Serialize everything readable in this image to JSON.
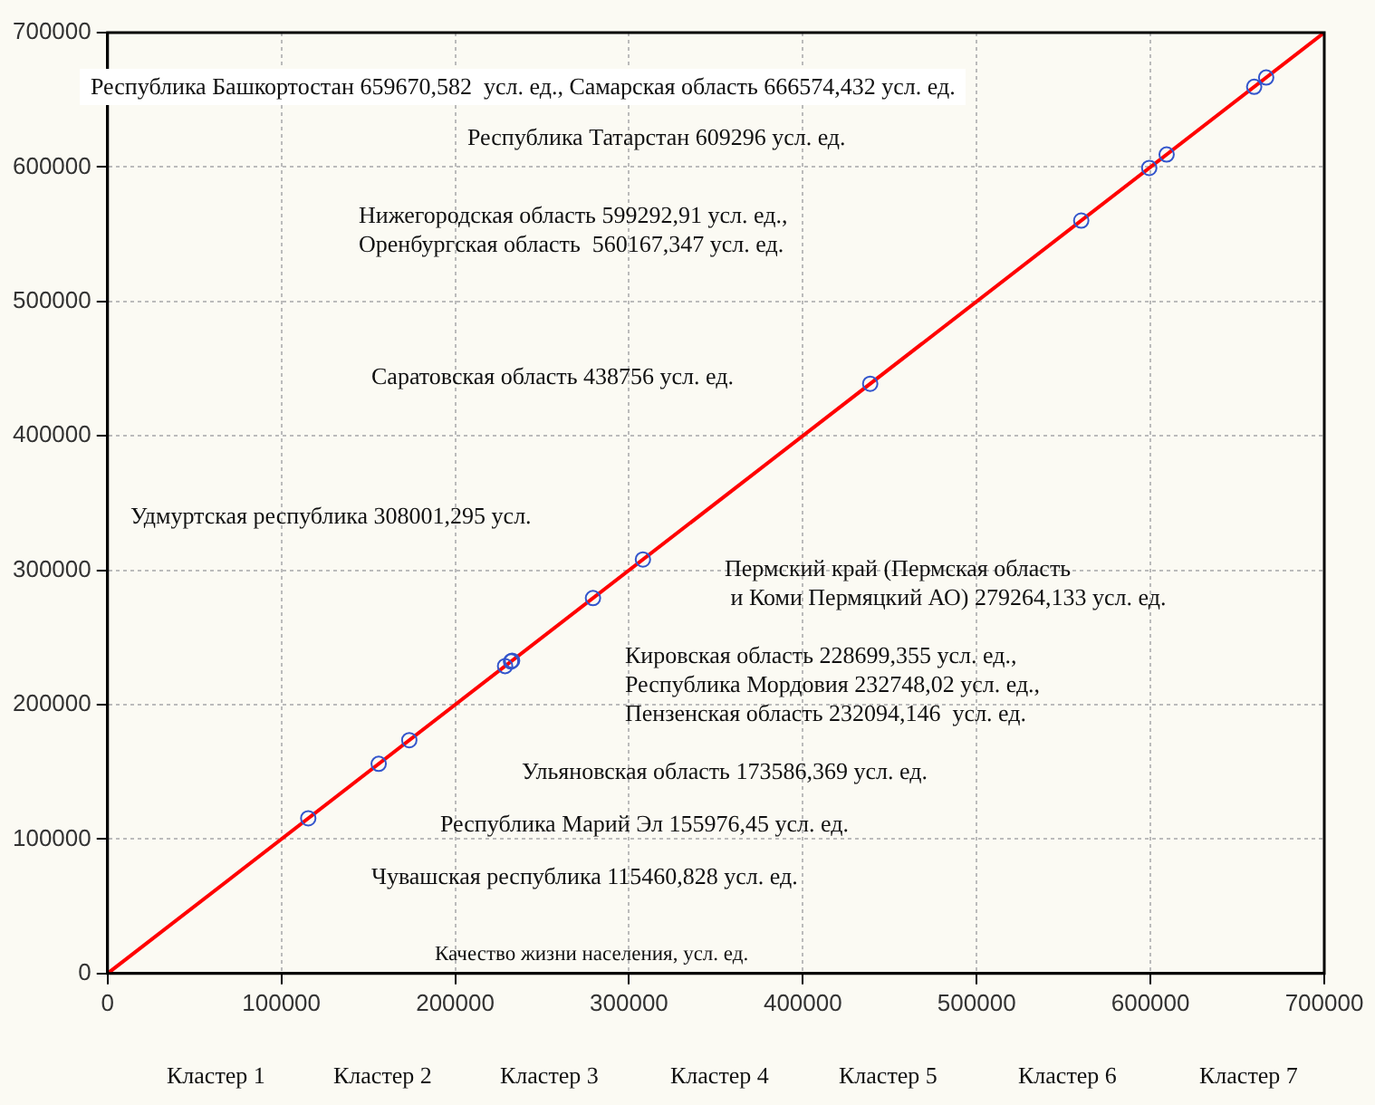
{
  "chart_data": {
    "type": "scatter",
    "xlim": [
      0,
      700000
    ],
    "ylim": [
      0,
      700000
    ],
    "xticks": [
      0,
      100000,
      200000,
      300000,
      400000,
      500000,
      600000,
      700000
    ],
    "yticks": [
      0,
      100000,
      200000,
      300000,
      400000,
      500000,
      600000,
      700000
    ],
    "grid": true,
    "marker": "circle",
    "series": [
      {
        "type": "line",
        "color": "#ff0000",
        "marker": "none",
        "x": [
          0,
          700000
        ],
        "values": [
          0,
          700000
        ]
      },
      {
        "type": "scatter",
        "color": "#3355cc",
        "x": [
          115460.828,
          155976.45,
          173586.369,
          228699.355,
          232094.146,
          232748.02,
          279264.133,
          308001.295,
          438756,
          560167.347,
          599292.91,
          609296,
          659670.582,
          666574.432
        ],
        "values": [
          115460.828,
          155976.45,
          173586.369,
          228699.355,
          232094.146,
          232748.02,
          279264.133,
          308001.295,
          438756,
          560167.347,
          599292.91,
          609296,
          659670.582,
          666574.432
        ]
      }
    ],
    "annotations": [
      "Республика Башкортостан 659670,582  усл. ед., Самарская область 666574,432 усл. ед.",
      "Республика Татарстан 609296 усл. ед.",
      "Нижегородская область 599292,91 усл. ед.,\nОренбургская область  560167,347 усл. ед.",
      "Саратовская область 438756 усл. ед.",
      "Удмуртская республика 308001,295 усл.",
      "Пермский край (Пермская область\n и Коми Пермяцкий АО) 279264,133 усл. ед.",
      "Кировская область 228699,355 усл. ед.,\nРеспублика Мордовия 232748,02 усл. ед.,\nПензенская область 232094,146  усл. ед.",
      "Ульяновская область 173586,369 усл. ед.",
      "Республика Марий Эл 155976,45 усл. ед.",
      "Чувашская республика 115460,828 усл. ед.",
      "Качество жизни населения, усл. ед.",
      "Кластер 1",
      "Кластер 2",
      "Кластер 3",
      "Кластер 4",
      "Кластер 5",
      "Кластер 6",
      "Кластер 7"
    ]
  }
}
